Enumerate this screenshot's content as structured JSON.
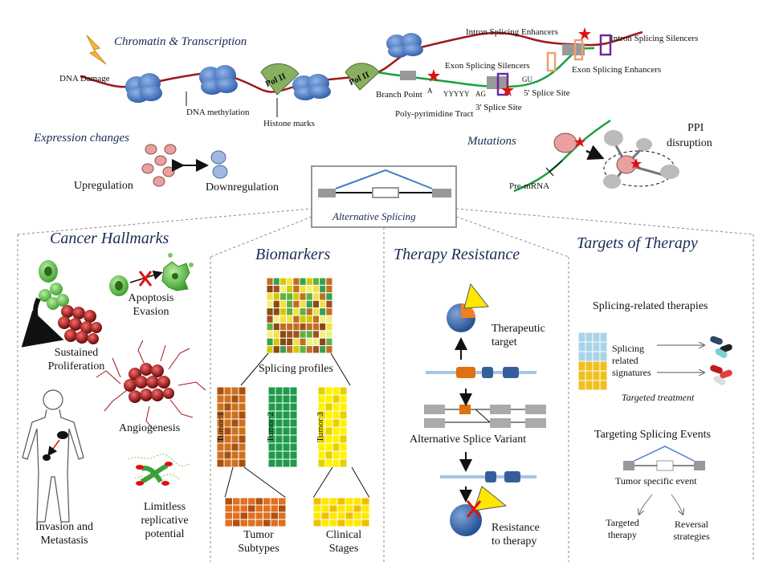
{
  "top": {
    "chromatin_title": "Chromatin & Transcription",
    "dna_damage": "DNA  Damage",
    "dna_methylation": "DNA  methylation",
    "histone_marks": "Histone marks",
    "pol_ii": "Pol II",
    "branch_point": "Branch Point",
    "a": "A",
    "yyyyy": "YYYYY",
    "ag": "AG",
    "gu": "GU",
    "poly_tract": "Poly-pyrimidine Tract",
    "splice3": "3' Splice Site",
    "splice5": "5' Splice Site",
    "ess": "Exon Splicing Silencers",
    "ise": "Intron Splicing Enhancers",
    "iss": "Intron Splicing Silencers",
    "ese": "Exon Splicing Enhancers"
  },
  "expression": {
    "title": "Expression changes",
    "up": "Upregulation",
    "down": "Downregulation"
  },
  "mutations": {
    "title": "Mutations",
    "ppi": "PPI",
    "disruption": "disruption",
    "pre_mrna": "Pre-mRNA"
  },
  "center": {
    "alt_splicing": "Alternative Splicing"
  },
  "hallmarks": {
    "title": "Cancer Hallmarks",
    "apoptosis": "Apoptosis",
    "evasion": "Evasion",
    "sustained": "Sustained",
    "proliferation": "Proliferation",
    "angiogenesis": "Angiogenesis",
    "invasion": "Invasion and",
    "metastasis": "Metastasis",
    "limitless": "Limitless",
    "replicative": "replicative",
    "potential": "potential"
  },
  "biomarkers": {
    "title": "Biomarkers",
    "profiles": "Splicing profiles",
    "tumor1": "Tumor 1",
    "tumor2": "Tumor 2",
    "tumor3": "Tumor 3",
    "tumor": "Tumor",
    "subtypes": "Subtypes",
    "clinical": "Clinical",
    "stages": "Stages"
  },
  "resistance": {
    "title": "Therapy Resistance",
    "therapeutic": "Therapeutic",
    "target": "target",
    "variant": "Alternative  Splice Variant",
    "resistance": "Resistance",
    "to_therapy": "to therapy"
  },
  "targets": {
    "title": "Targets of Therapy",
    "splicing_therapies": "Splicing-related therapies",
    "splicing": "Splicing",
    "related": "related",
    "signatures": "signatures",
    "targeted_treatment": "Targeted treatment",
    "targeting_events": "Targeting  Splicing  Events",
    "tumor_event": "Tumor specific event",
    "targeted": "Targeted",
    "therapy": "therapy",
    "reversal": "Reversal",
    "strategies": "strategies"
  }
}
